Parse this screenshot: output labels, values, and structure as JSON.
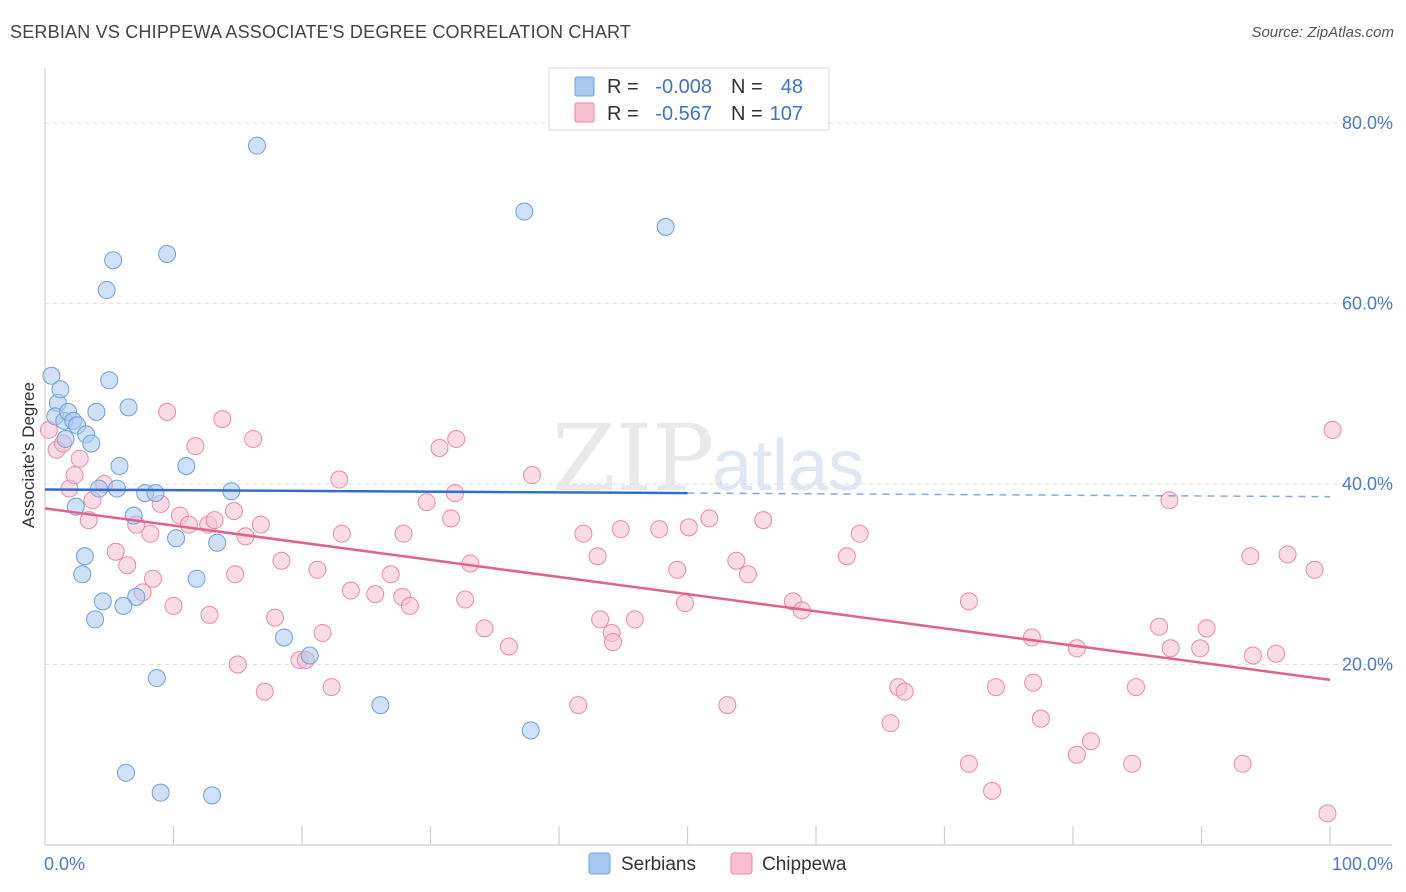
{
  "title": "SERBIAN VS CHIPPEWA ASSOCIATE'S DEGREE CORRELATION CHART",
  "source": "Source: ZipAtlas.com",
  "watermark": {
    "part1": "ZIP",
    "part2": "atlas"
  },
  "legend_top": [
    {
      "name": "Serbians",
      "r_label": "R =",
      "r_value": "-0.008",
      "n_label": "N =",
      "n_value": "48",
      "color": "#a9c8f0",
      "stroke": "#6f9fdc"
    },
    {
      "name": "Chippewa",
      "r_label": "R =",
      "r_value": "-0.567",
      "n_label": "N =",
      "n_value": "107",
      "color": "#f7bfd0",
      "stroke": "#e88aa8"
    }
  ],
  "chart_data": {
    "type": "scatter",
    "title": "SERBIAN VS CHIPPEWA ASSOCIATE'S DEGREE CORRELATION CHART",
    "xlabel": "",
    "ylabel": "Associate's Degree",
    "xlim": [
      0,
      100
    ],
    "ylim": [
      0,
      85
    ],
    "x_tick_labels": [
      "0.0%",
      "100.0%"
    ],
    "y_ticks": [
      20,
      40,
      60,
      80
    ],
    "y_tick_labels": [
      "20.0%",
      "40.0%",
      "60.0%",
      "80.0%"
    ],
    "grid": true,
    "series": [
      {
        "name": "Serbians",
        "color": "#a9c8f0",
        "stroke": "#6f9fdc",
        "trend_color": "#2f6fd0",
        "trend": {
          "x_start": 0,
          "y_start": 39.4,
          "x_solid_end": 50,
          "x_end": 100,
          "y_end": 38.6
        },
        "points": [
          [
            0.5,
            52.0
          ],
          [
            1.0,
            49.0
          ],
          [
            0.8,
            47.5
          ],
          [
            1.2,
            50.5
          ],
          [
            1.5,
            47.0
          ],
          [
            1.8,
            48.0
          ],
          [
            2.2,
            47.0
          ],
          [
            2.5,
            46.5
          ],
          [
            3.2,
            45.5
          ],
          [
            3.6,
            44.5
          ],
          [
            1.6,
            45.0
          ],
          [
            4.0,
            48.0
          ],
          [
            5.0,
            51.5
          ],
          [
            6.5,
            48.5
          ],
          [
            5.8,
            42.0
          ],
          [
            11.0,
            42.0
          ],
          [
            4.2,
            39.5
          ],
          [
            5.6,
            39.5
          ],
          [
            7.8,
            39.0
          ],
          [
            8.6,
            39.0
          ],
          [
            14.5,
            39.2
          ],
          [
            2.4,
            37.5
          ],
          [
            6.9,
            36.5
          ],
          [
            10.2,
            34.0
          ],
          [
            13.4,
            33.5
          ],
          [
            3.1,
            32.0
          ],
          [
            2.9,
            30.0
          ],
          [
            11.8,
            29.5
          ],
          [
            7.1,
            27.5
          ],
          [
            4.5,
            27.0
          ],
          [
            6.1,
            26.5
          ],
          [
            3.9,
            25.0
          ],
          [
            18.6,
            23.0
          ],
          [
            20.6,
            21.0
          ],
          [
            8.7,
            18.5
          ],
          [
            26.1,
            15.5
          ],
          [
            37.8,
            12.7
          ],
          [
            6.3,
            8.0
          ],
          [
            9.0,
            5.8
          ],
          [
            13.0,
            5.5
          ],
          [
            9.5,
            65.5
          ],
          [
            5.3,
            64.8
          ],
          [
            4.8,
            61.5
          ],
          [
            16.5,
            77.5
          ],
          [
            37.3,
            70.2
          ],
          [
            48.3,
            68.5
          ]
        ]
      },
      {
        "name": "Chippewa",
        "color": "#f7bfd0",
        "stroke": "#e88aa8",
        "trend_color": "#e0608e",
        "trend": {
          "x_start": 0,
          "y_start": 37.3,
          "x_end": 100,
          "y_end": 18.3
        },
        "points": [
          [
            0.3,
            46.0
          ],
          [
            0.9,
            43.8
          ],
          [
            1.4,
            44.5
          ],
          [
            2.7,
            42.8
          ],
          [
            1.9,
            39.5
          ],
          [
            2.3,
            41.0
          ],
          [
            3.7,
            38.2
          ],
          [
            4.6,
            40.0
          ],
          [
            3.4,
            36.0
          ],
          [
            5.5,
            32.5
          ],
          [
            6.4,
            31.0
          ],
          [
            7.6,
            28.0
          ],
          [
            8.4,
            29.5
          ],
          [
            10.0,
            26.5
          ],
          [
            12.8,
            25.5
          ],
          [
            17.9,
            25.2
          ],
          [
            9.5,
            48.0
          ],
          [
            11.7,
            44.2
          ],
          [
            13.8,
            47.2
          ],
          [
            16.2,
            45.0
          ],
          [
            9.0,
            37.8
          ],
          [
            10.5,
            36.5
          ],
          [
            11.2,
            35.5
          ],
          [
            12.7,
            35.5
          ],
          [
            13.2,
            36.0
          ],
          [
            14.7,
            37.0
          ],
          [
            15.6,
            34.2
          ],
          [
            16.8,
            35.5
          ],
          [
            8.2,
            34.5
          ],
          [
            7.1,
            35.5
          ],
          [
            14.8,
            30.0
          ],
          [
            18.4,
            31.5
          ],
          [
            21.2,
            30.5
          ],
          [
            19.8,
            20.5
          ],
          [
            20.3,
            20.5
          ],
          [
            22.3,
            17.5
          ],
          [
            17.1,
            17.0
          ],
          [
            21.6,
            23.5
          ],
          [
            23.1,
            34.5
          ],
          [
            22.9,
            40.5
          ],
          [
            27.9,
            34.5
          ],
          [
            23.8,
            28.2
          ],
          [
            25.7,
            27.8
          ],
          [
            27.8,
            27.5
          ],
          [
            26.9,
            30.0
          ],
          [
            28.4,
            26.5
          ],
          [
            29.7,
            38.0
          ],
          [
            30.7,
            44.0
          ],
          [
            32.0,
            45.0
          ],
          [
            31.6,
            36.2
          ],
          [
            31.9,
            39.0
          ],
          [
            32.7,
            27.2
          ],
          [
            33.1,
            31.2
          ],
          [
            34.2,
            24.0
          ],
          [
            36.1,
            22.0
          ],
          [
            37.9,
            41.0
          ],
          [
            41.9,
            34.5
          ],
          [
            41.5,
            15.5
          ],
          [
            43.2,
            25.0
          ],
          [
            44.1,
            23.5
          ],
          [
            44.2,
            22.5
          ],
          [
            44.8,
            35.0
          ],
          [
            45.9,
            25.0
          ],
          [
            47.8,
            35.0
          ],
          [
            49.2,
            30.5
          ],
          [
            49.8,
            26.8
          ],
          [
            50.1,
            35.2
          ],
          [
            51.7,
            36.2
          ],
          [
            53.1,
            15.5
          ],
          [
            53.8,
            31.5
          ],
          [
            54.7,
            30.0
          ],
          [
            55.9,
            36.0
          ],
          [
            58.2,
            27.0
          ],
          [
            58.9,
            26.0
          ],
          [
            62.4,
            32.0
          ],
          [
            63.4,
            34.5
          ],
          [
            65.8,
            13.5
          ],
          [
            66.4,
            17.5
          ],
          [
            66.9,
            17.0
          ],
          [
            71.9,
            9.0
          ],
          [
            71.9,
            27.0
          ],
          [
            73.7,
            6.0
          ],
          [
            74.0,
            17.5
          ],
          [
            76.8,
            23.0
          ],
          [
            76.9,
            18.0
          ],
          [
            77.5,
            14.0
          ],
          [
            80.3,
            21.8
          ],
          [
            80.3,
            10.0
          ],
          [
            81.4,
            11.5
          ],
          [
            84.6,
            9.0
          ],
          [
            84.9,
            17.5
          ],
          [
            86.7,
            24.2
          ],
          [
            87.6,
            21.8
          ],
          [
            89.9,
            21.8
          ],
          [
            90.4,
            24.0
          ],
          [
            93.2,
            9.0
          ],
          [
            93.8,
            32.0
          ],
          [
            94.0,
            21.0
          ],
          [
            95.8,
            21.2
          ],
          [
            96.7,
            32.2
          ],
          [
            98.8,
            30.5
          ],
          [
            99.8,
            3.5
          ],
          [
            100.2,
            46.0
          ],
          [
            87.5,
            38.2
          ],
          [
            15.0,
            20.0
          ],
          [
            43.0,
            32.0
          ]
        ]
      }
    ]
  }
}
